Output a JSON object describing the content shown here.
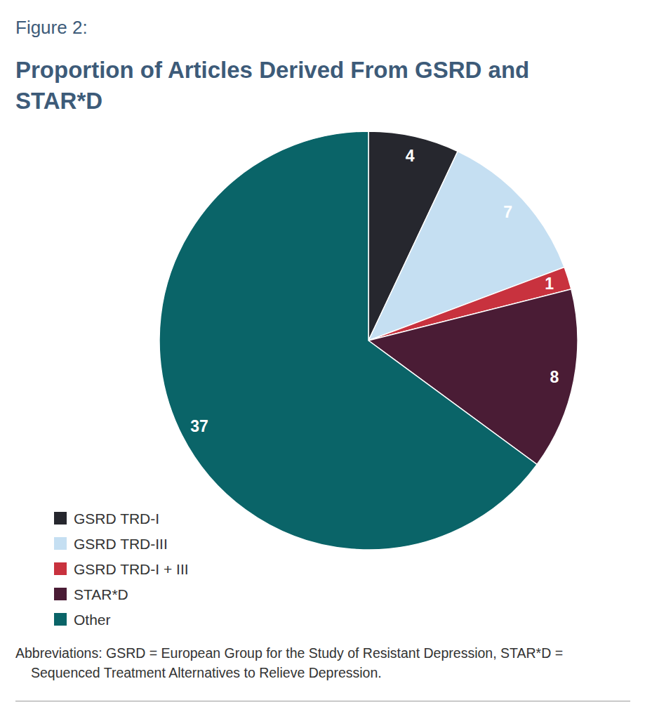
{
  "chart_data": {
    "type": "pie",
    "title": "Proportion of Articles Derived From GSRD and STAR*D",
    "annotations": [
      "Figure 2:",
      "Abbreviations: GSRD = European Group for the Study of Resistant Depression, STAR*D = Sequenced Treatment Alternatives to Relieve Depression."
    ],
    "categories": [
      "GSRD TRD-I",
      "GSRD TRD-III",
      "GSRD TRD-I + III",
      "STAR*D",
      "Other"
    ],
    "values": [
      4,
      7,
      1,
      8,
      37
    ],
    "colors": [
      "#26272e",
      "#c5dff2",
      "#c8323e",
      "#4a1c35",
      "#0a6468"
    ],
    "data_labels": true,
    "legend": "bottom-left"
  }
}
